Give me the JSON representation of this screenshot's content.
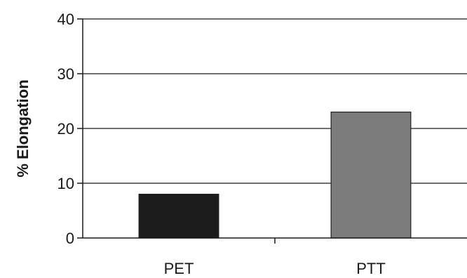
{
  "chart_data": {
    "type": "bar",
    "categories": [
      "PET",
      "PTT"
    ],
    "values": [
      8,
      23
    ],
    "bar_colors": [
      "#1c1c1c",
      "#7c7c7c"
    ],
    "ylabel": "% Elongation",
    "xlabel": "",
    "ylim": [
      0,
      40
    ],
    "yticks": [
      0,
      10,
      20,
      30,
      40
    ],
    "grid": true
  }
}
